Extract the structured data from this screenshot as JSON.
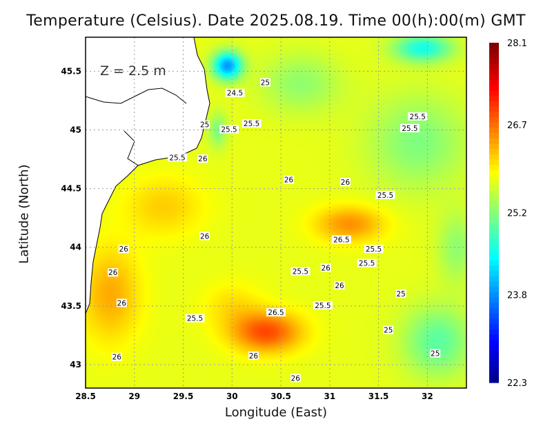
{
  "title": "Temperature (Celsius). Date 2025.08.19. Time 00(h):00(m) GMT",
  "xlabel": "Longitude (East)",
  "ylabel": "Latitude (North)",
  "depth_label": "Z = 2.5 m",
  "map": {
    "lon_range": [
      28.5,
      32.4
    ],
    "lat_range": [
      42.8,
      45.79
    ],
    "lon_ticks": [
      "28.5",
      "29",
      "29.5",
      "30",
      "30.5",
      "31",
      "31.5",
      "32"
    ],
    "lat_ticks": [
      "45.5",
      "45",
      "44.5",
      "44",
      "43.5",
      "43"
    ],
    "grid": true,
    "colormap": "jet",
    "land_color": "#ffffff",
    "contour_labels": [
      {
        "text": "24.5",
        "lon": 30.03,
        "lat": 45.31
      },
      {
        "text": "25",
        "lon": 30.34,
        "lat": 45.4
      },
      {
        "text": "25",
        "lon": 29.72,
        "lat": 45.04
      },
      {
        "text": "25.5",
        "lon": 29.97,
        "lat": 45.0
      },
      {
        "text": "25.5",
        "lon": 30.2,
        "lat": 45.05
      },
      {
        "text": "25.5",
        "lon": 29.44,
        "lat": 44.76
      },
      {
        "text": "26",
        "lon": 29.7,
        "lat": 44.75
      },
      {
        "text": "25.5",
        "lon": 31.9,
        "lat": 45.11
      },
      {
        "text": "25.5",
        "lon": 31.82,
        "lat": 45.01
      },
      {
        "text": "26",
        "lon": 30.58,
        "lat": 44.57
      },
      {
        "text": "26",
        "lon": 31.16,
        "lat": 44.55
      },
      {
        "text": "25.5",
        "lon": 31.57,
        "lat": 44.44
      },
      {
        "text": "26",
        "lon": 29.72,
        "lat": 44.09
      },
      {
        "text": "26.5",
        "lon": 31.12,
        "lat": 44.06
      },
      {
        "text": "26",
        "lon": 28.89,
        "lat": 43.98
      },
      {
        "text": "25.5",
        "lon": 31.45,
        "lat": 43.98
      },
      {
        "text": "25.5",
        "lon": 31.38,
        "lat": 43.86
      },
      {
        "text": "26",
        "lon": 28.78,
        "lat": 43.78
      },
      {
        "text": "26",
        "lon": 30.96,
        "lat": 43.82
      },
      {
        "text": "25.5",
        "lon": 30.7,
        "lat": 43.79
      },
      {
        "text": "26",
        "lon": 31.1,
        "lat": 43.67
      },
      {
        "text": "25",
        "lon": 31.73,
        "lat": 43.6
      },
      {
        "text": "26",
        "lon": 28.87,
        "lat": 43.52
      },
      {
        "text": "25.5",
        "lon": 30.93,
        "lat": 43.5
      },
      {
        "text": "26.5",
        "lon": 30.45,
        "lat": 43.44
      },
      {
        "text": "25.5",
        "lon": 29.62,
        "lat": 43.39
      },
      {
        "text": "25",
        "lon": 31.6,
        "lat": 43.29
      },
      {
        "text": "26",
        "lon": 28.82,
        "lat": 43.06
      },
      {
        "text": "26",
        "lon": 30.22,
        "lat": 43.07
      },
      {
        "text": "25",
        "lon": 32.08,
        "lat": 43.09
      },
      {
        "text": "26",
        "lon": 30.65,
        "lat": 42.88
      }
    ]
  },
  "colorbar": {
    "min": 22.3,
    "max": 28.1,
    "tick_labels": [
      "28.1",
      "26.7",
      "25.2",
      "23.8",
      "22.3"
    ],
    "tick_values": [
      28.1,
      26.7,
      25.2,
      23.8,
      22.3
    ]
  }
}
